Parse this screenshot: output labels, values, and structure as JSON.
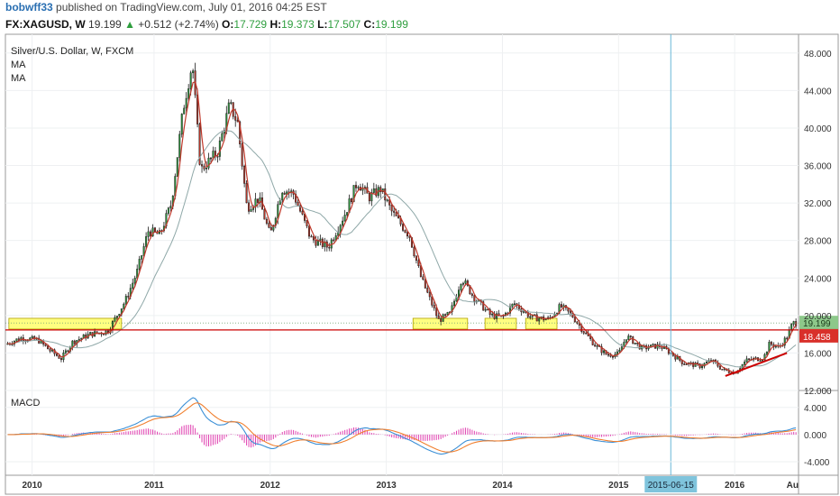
{
  "header": {
    "author": "bobwff33",
    "published_text": "published on TradingView.com, July 01, 2016 04:25 EST"
  },
  "quote": {
    "symbol_interval": "FX:XAGUSD, W",
    "price": "19.199",
    "change": "+0.512 (+2.74%)",
    "open_label": "O:",
    "open": "17.729",
    "high_label": "H:",
    "high": "19.373",
    "low_label": "L:",
    "low": "17.507",
    "close_label": "C:",
    "close": "19.199"
  },
  "legend": {
    "title": "Silver/U.S. Dollar, W, FXCM",
    "ma1": "MA",
    "ma2": "MA"
  },
  "macd": {
    "label": "MACD"
  },
  "colors": {
    "up": "#2e9e3e",
    "down": "#c0392b",
    "ma_fast": "#c0392b",
    "ma_slow": "#8fa8a8",
    "macd_line": "#3a8fd6",
    "signal_line": "#f08030",
    "hist": "#e040b0",
    "support_line": "#cc0000",
    "highlight_box": "#ffff80",
    "crosshair": "#6ab8d8"
  },
  "chart_data": {
    "type": "candlestick",
    "x_tick_labels": [
      "2010",
      "2011",
      "2012",
      "2013",
      "2014",
      "2015",
      "2016",
      "Au"
    ],
    "y_tick_labels": [
      "48.000",
      "44.000",
      "40.000",
      "36.000",
      "32.000",
      "28.000",
      "24.000",
      "20.000",
      "16.000",
      "12.000"
    ],
    "ylim": [
      12,
      50
    ],
    "macd_tick_labels": [
      "4.000",
      "0.000",
      "-4.000"
    ],
    "macd_ylim": [
      -6,
      6.5
    ],
    "crosshair_date_label": "2015-06-15",
    "price_badge_current": "19.199",
    "price_badge_line": "18.458",
    "support_level": 18.458,
    "close_series": [
      {
        "t": 2009.5,
        "v": 17.5
      },
      {
        "t": 2009.7,
        "v": 16.8
      },
      {
        "t": 2009.85,
        "v": 17.6
      },
      {
        "t": 2010.0,
        "v": 17.4
      },
      {
        "t": 2010.1,
        "v": 16.3
      },
      {
        "t": 2010.2,
        "v": 15.4
      },
      {
        "t": 2010.3,
        "v": 17.2
      },
      {
        "t": 2010.45,
        "v": 18.0
      },
      {
        "t": 2010.6,
        "v": 18.3
      },
      {
        "t": 2010.75,
        "v": 21.5
      },
      {
        "t": 2010.85,
        "v": 24.5
      },
      {
        "t": 2010.95,
        "v": 29.0
      },
      {
        "t": 2011.05,
        "v": 28.6
      },
      {
        "t": 2011.15,
        "v": 32.0
      },
      {
        "t": 2011.25,
        "v": 42.0
      },
      {
        "t": 2011.33,
        "v": 47.0
      },
      {
        "t": 2011.4,
        "v": 35.5
      },
      {
        "t": 2011.55,
        "v": 37.5
      },
      {
        "t": 2011.65,
        "v": 42.5
      },
      {
        "t": 2011.72,
        "v": 40.5
      },
      {
        "t": 2011.8,
        "v": 31.5
      },
      {
        "t": 2011.9,
        "v": 32.5
      },
      {
        "t": 2012.0,
        "v": 28.5
      },
      {
        "t": 2012.1,
        "v": 33.5
      },
      {
        "t": 2012.2,
        "v": 33.0
      },
      {
        "t": 2012.35,
        "v": 28.2
      },
      {
        "t": 2012.5,
        "v": 27.3
      },
      {
        "t": 2012.65,
        "v": 31.0
      },
      {
        "t": 2012.75,
        "v": 34.3
      },
      {
        "t": 2012.85,
        "v": 32.6
      },
      {
        "t": 2012.95,
        "v": 33.5
      },
      {
        "t": 2013.05,
        "v": 31.0
      },
      {
        "t": 2013.2,
        "v": 28.5
      },
      {
        "t": 2013.3,
        "v": 24.0
      },
      {
        "t": 2013.45,
        "v": 19.5
      },
      {
        "t": 2013.55,
        "v": 20.2
      },
      {
        "t": 2013.65,
        "v": 24.0
      },
      {
        "t": 2013.75,
        "v": 22.0
      },
      {
        "t": 2013.9,
        "v": 20.0
      },
      {
        "t": 2014.0,
        "v": 19.8
      },
      {
        "t": 2014.1,
        "v": 21.3
      },
      {
        "t": 2014.25,
        "v": 19.8
      },
      {
        "t": 2014.4,
        "v": 19.6
      },
      {
        "t": 2014.5,
        "v": 21.0
      },
      {
        "t": 2014.6,
        "v": 20.0
      },
      {
        "t": 2014.7,
        "v": 18.3
      },
      {
        "t": 2014.8,
        "v": 16.8
      },
      {
        "t": 2014.9,
        "v": 15.8
      },
      {
        "t": 2015.0,
        "v": 15.9
      },
      {
        "t": 2015.07,
        "v": 17.8
      },
      {
        "t": 2015.2,
        "v": 16.5
      },
      {
        "t": 2015.35,
        "v": 16.8
      },
      {
        "t": 2015.45,
        "v": 16.0
      },
      {
        "t": 2015.55,
        "v": 15.0
      },
      {
        "t": 2015.7,
        "v": 14.6
      },
      {
        "t": 2015.8,
        "v": 15.2
      },
      {
        "t": 2015.9,
        "v": 14.2
      },
      {
        "t": 2016.0,
        "v": 13.9
      },
      {
        "t": 2016.1,
        "v": 15.2
      },
      {
        "t": 2016.25,
        "v": 15.5
      },
      {
        "t": 2016.3,
        "v": 17.0
      },
      {
        "t": 2016.38,
        "v": 16.6
      },
      {
        "t": 2016.45,
        "v": 17.7
      },
      {
        "t": 2016.5,
        "v": 19.2
      }
    ]
  }
}
